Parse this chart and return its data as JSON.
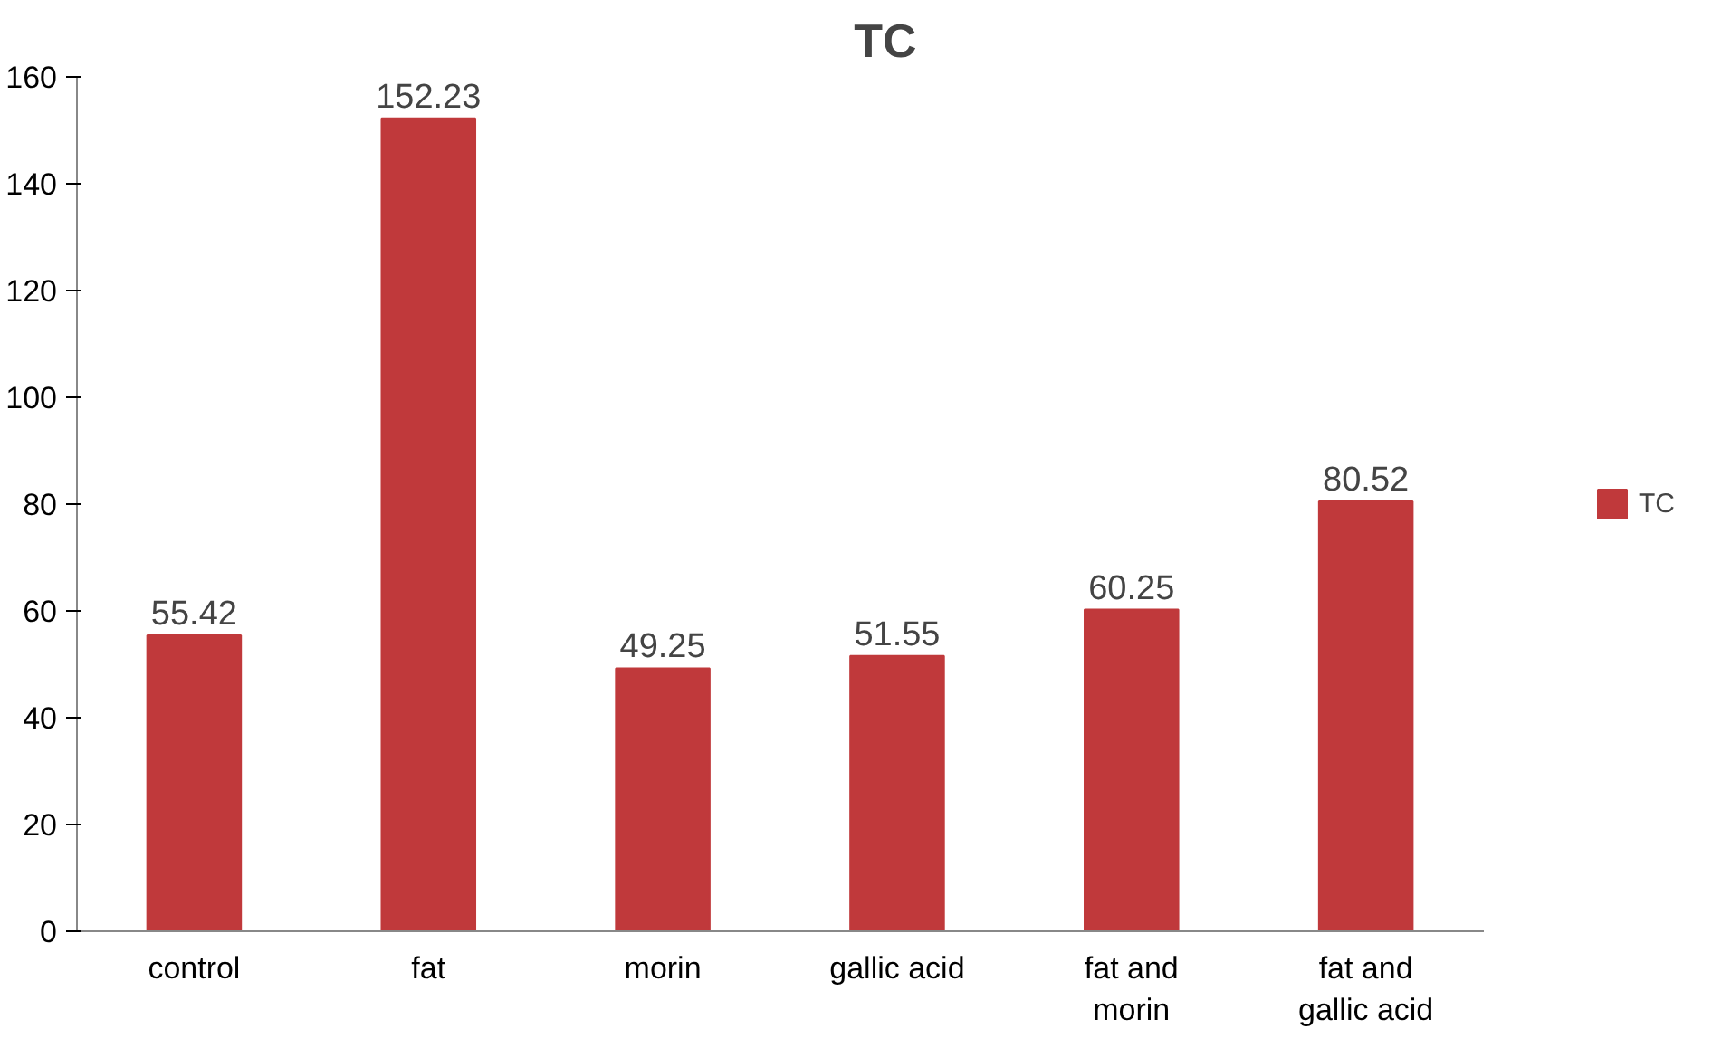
{
  "chart_data": {
    "type": "bar",
    "title": "TC",
    "categories": [
      "control",
      "fat",
      "morin",
      "gallic acid",
      "fat and morin",
      "fat and gallic acid"
    ],
    "series": [
      {
        "name": "TC",
        "color": "#c0393b",
        "values": [
          55.42,
          152.23,
          49.25,
          51.55,
          60.25,
          80.52
        ]
      }
    ],
    "ylim": [
      0,
      160
    ],
    "yticks": [
      0,
      20,
      40,
      60,
      80,
      100,
      120,
      140,
      160
    ],
    "data_labels": true,
    "grid": false,
    "legend": "right"
  }
}
